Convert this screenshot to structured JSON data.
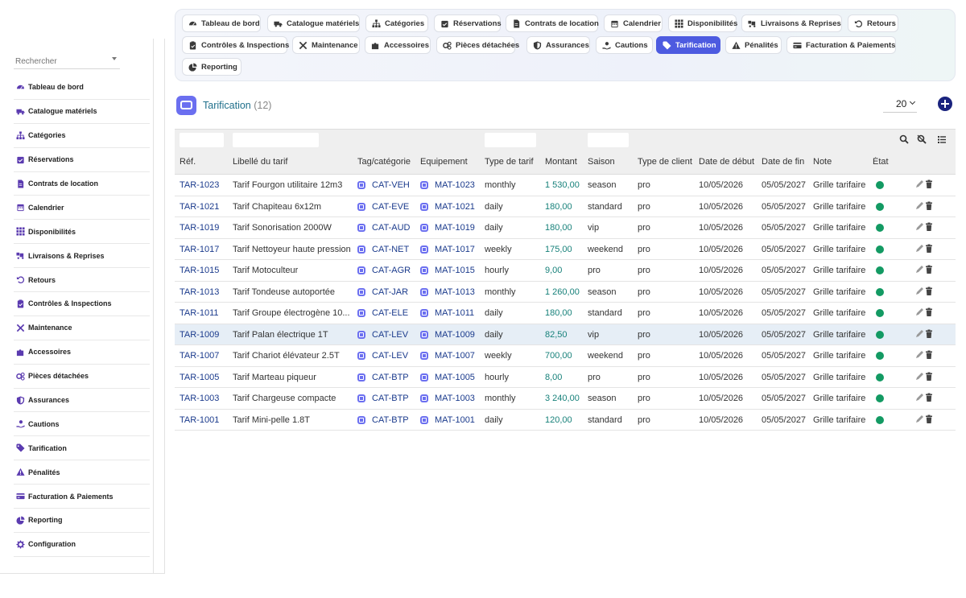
{
  "sidebar": {
    "search_placeholder": "Rechercher",
    "items": [
      {
        "label": "Tableau de bord",
        "icon": "dashboard-icon"
      },
      {
        "label": "Catalogue matériels",
        "icon": "truck-icon"
      },
      {
        "label": "Catégories",
        "icon": "sitemap-icon"
      },
      {
        "label": "Réservations",
        "icon": "calendar-check-icon"
      },
      {
        "label": "Contrats de location",
        "icon": "contract-icon"
      },
      {
        "label": "Calendrier",
        "icon": "calendar-icon"
      },
      {
        "label": "Disponibilités",
        "icon": "grid-icon"
      },
      {
        "label": "Livraisons & Reprises",
        "icon": "truck-loading-icon"
      },
      {
        "label": "Retours",
        "icon": "undo-icon"
      },
      {
        "label": "Contrôles & Inspections",
        "icon": "clipboard-check-icon"
      },
      {
        "label": "Maintenance",
        "icon": "tools-icon"
      },
      {
        "label": "Accessoires",
        "icon": "puzzle-icon"
      },
      {
        "label": "Pièces détachées",
        "icon": "cogs-icon"
      },
      {
        "label": "Assurances",
        "icon": "shield-icon"
      },
      {
        "label": "Cautions",
        "icon": "hand-holding-icon"
      },
      {
        "label": "Tarification",
        "icon": "tags-icon"
      },
      {
        "label": "Pénalités",
        "icon": "warning-icon"
      },
      {
        "label": "Facturation & Paiements",
        "icon": "credit-card-icon"
      },
      {
        "label": "Reporting",
        "icon": "chart-pie-icon"
      },
      {
        "label": "Configuration",
        "icon": "gear-icon"
      }
    ]
  },
  "topnav": {
    "tabs": [
      {
        "label": "Tableau de bord",
        "icon": "dashboard-icon"
      },
      {
        "label": "Catalogue matériels",
        "icon": "truck-icon"
      },
      {
        "label": "Catégories",
        "icon": "sitemap-icon"
      },
      {
        "label": "Réservations",
        "icon": "calendar-check-icon"
      },
      {
        "label": "Contrats de location",
        "icon": "contract-icon"
      },
      {
        "label": "Calendrier",
        "icon": "calendar-icon"
      },
      {
        "label": "Disponibilités",
        "icon": "grid-icon"
      },
      {
        "label": "Livraisons & Reprises",
        "icon": "truck-loading-icon"
      },
      {
        "label": "Retours",
        "icon": "undo-icon"
      },
      {
        "label": "Contrôles & Inspections",
        "icon": "clipboard-check-icon"
      },
      {
        "label": "Maintenance",
        "icon": "tools-icon"
      },
      {
        "label": "Accessoires",
        "icon": "puzzle-icon"
      },
      {
        "label": "Pièces détachées",
        "icon": "cogs-icon"
      },
      {
        "label": "Assurances",
        "icon": "shield-icon"
      },
      {
        "label": "Cautions",
        "icon": "hand-holding-icon"
      },
      {
        "label": "Tarification",
        "icon": "tags-icon"
      },
      {
        "label": "Pénalités",
        "icon": "warning-icon"
      },
      {
        "label": "Facturation & Paiements",
        "icon": "credit-card-icon"
      },
      {
        "label": "Reporting",
        "icon": "chart-pie-icon"
      }
    ],
    "active_tab": "Tarification"
  },
  "page": {
    "title": "Tarification",
    "count": "(12)",
    "per_page": "20",
    "accent_color": "#4d5be0"
  },
  "table": {
    "columns": [
      "Réf.",
      "Libellé du tarif",
      "Tag/catégorie",
      "Equipement",
      "Type de tarif",
      "Montant",
      "Saison",
      "Type de client",
      "Date de début",
      "Date de fin",
      "Note",
      "État"
    ],
    "rows": [
      {
        "ref": "TAR-1023",
        "label": "Tarif Fourgon utilitaire 12m3",
        "cat": "CAT-VEH",
        "equip": "MAT-1023",
        "type": "monthly",
        "amount": "1 530,00",
        "season": "season",
        "client": "pro",
        "start": "10/05/2026",
        "end": "05/05/2027",
        "note": "Grille tarifaire"
      },
      {
        "ref": "TAR-1021",
        "label": "Tarif Chapiteau 6x12m",
        "cat": "CAT-EVE",
        "equip": "MAT-1021",
        "type": "daily",
        "amount": "180,00",
        "season": "standard",
        "client": "pro",
        "start": "10/05/2026",
        "end": "05/05/2027",
        "note": "Grille tarifaire"
      },
      {
        "ref": "TAR-1019",
        "label": "Tarif Sonorisation 2000W",
        "cat": "CAT-AUD",
        "equip": "MAT-1019",
        "type": "daily",
        "amount": "180,00",
        "season": "vip",
        "client": "pro",
        "start": "10/05/2026",
        "end": "05/05/2027",
        "note": "Grille tarifaire"
      },
      {
        "ref": "TAR-1017",
        "label": "Tarif Nettoyeur haute pression",
        "cat": "CAT-NET",
        "equip": "MAT-1017",
        "type": "weekly",
        "amount": "175,00",
        "season": "weekend",
        "client": "pro",
        "start": "10/05/2026",
        "end": "05/05/2027",
        "note": "Grille tarifaire"
      },
      {
        "ref": "TAR-1015",
        "label": "Tarif Motoculteur",
        "cat": "CAT-AGR",
        "equip": "MAT-1015",
        "type": "hourly",
        "amount": "9,00",
        "season": "pro",
        "client": "pro",
        "start": "10/05/2026",
        "end": "05/05/2027",
        "note": "Grille tarifaire"
      },
      {
        "ref": "TAR-1013",
        "label": "Tarif Tondeuse autoportée",
        "cat": "CAT-JAR",
        "equip": "MAT-1013",
        "type": "monthly",
        "amount": "1 260,00",
        "season": "season",
        "client": "pro",
        "start": "10/05/2026",
        "end": "05/05/2027",
        "note": "Grille tarifaire"
      },
      {
        "ref": "TAR-1011",
        "label": "Tarif Groupe électrogène 10...",
        "cat": "CAT-ELE",
        "equip": "MAT-1011",
        "type": "daily",
        "amount": "180,00",
        "season": "standard",
        "client": "pro",
        "start": "10/05/2026",
        "end": "05/05/2027",
        "note": "Grille tarifaire"
      },
      {
        "ref": "TAR-1009",
        "label": "Tarif Palan électrique 1T",
        "cat": "CAT-LEV",
        "equip": "MAT-1009",
        "type": "daily",
        "amount": "82,50",
        "season": "vip",
        "client": "pro",
        "start": "10/05/2026",
        "end": "05/05/2027",
        "note": "Grille tarifaire"
      },
      {
        "ref": "TAR-1007",
        "label": "Tarif Chariot élévateur 2.5T",
        "cat": "CAT-LEV",
        "equip": "MAT-1007",
        "type": "weekly",
        "amount": "700,00",
        "season": "weekend",
        "client": "pro",
        "start": "10/05/2026",
        "end": "05/05/2027",
        "note": "Grille tarifaire"
      },
      {
        "ref": "TAR-1005",
        "label": "Tarif Marteau piqueur",
        "cat": "CAT-BTP",
        "equip": "MAT-1005",
        "type": "hourly",
        "amount": "8,00",
        "season": "pro",
        "client": "pro",
        "start": "10/05/2026",
        "end": "05/05/2027",
        "note": "Grille tarifaire"
      },
      {
        "ref": "TAR-1003",
        "label": "Tarif Chargeuse compacte",
        "cat": "CAT-BTP",
        "equip": "MAT-1003",
        "type": "monthly",
        "amount": "3 240,00",
        "season": "season",
        "client": "pro",
        "start": "10/05/2026",
        "end": "05/05/2027",
        "note": "Grille tarifaire"
      },
      {
        "ref": "TAR-1001",
        "label": "Tarif Mini-pelle 1.8T",
        "cat": "CAT-BTP",
        "equip": "MAT-1001",
        "type": "daily",
        "amount": "120,00",
        "season": "standard",
        "client": "pro",
        "start": "10/05/2026",
        "end": "05/05/2027",
        "note": "Grille tarifaire"
      }
    ],
    "state_color": "#139a63"
  }
}
